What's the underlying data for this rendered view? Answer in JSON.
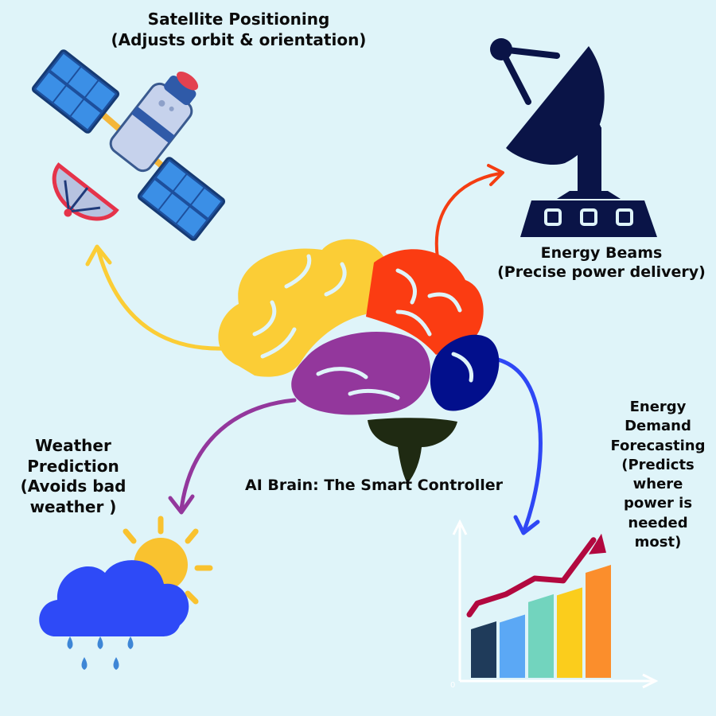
{
  "colors": {
    "background": "#dff4f9",
    "brain_frontal": "#fbcd36",
    "brain_parietal": "#fb3c12",
    "brain_temporal": "#93379c",
    "brain_occipital": "#020f8c",
    "brain_stem": "#1f2a12",
    "arrow_satellite": "#fbcd36",
    "arrow_beams": "#f43d12",
    "arrow_weather": "#93379c",
    "arrow_demand": "#2f47f5",
    "dish_navy": "#0a1447",
    "cloud_blue": "#2e4af7",
    "sun_yellow": "#f9c22f",
    "trend_line": "#b2083f"
  },
  "nodes": {
    "satellite": {
      "title": "Satellite Positioning",
      "subtitle": "(Adjusts orbit & orientation)",
      "icon": "satellite-icon"
    },
    "beams": {
      "title": "Energy Beams",
      "subtitle": "(Precise power delivery)",
      "icon": "satellite-dish-icon"
    },
    "weather": {
      "line1": "Weather",
      "line2": "Prediction",
      "line3": "(Avoids bad",
      "line4": "weather )",
      "icon": "rain-cloud-sun-icon"
    },
    "demand": {
      "line1": "Energy",
      "line2": "Demand",
      "line3": "Forecasting",
      "line4": "(Predicts",
      "line5": "where",
      "line6": "power is",
      "line7": "needed",
      "line8": "most)",
      "icon": "bar-chart-icon"
    },
    "brain": {
      "title": "AI Brain: The Smart Controller",
      "icon": "brain-icon"
    }
  },
  "chart": {
    "axis_origin_label": "0",
    "bars": [
      {
        "value": 0.5,
        "color": "#1f3b5a"
      },
      {
        "value": 0.56,
        "color": "#5ba8f5"
      },
      {
        "value": 0.74,
        "color": "#72d4be"
      },
      {
        "value": 0.8,
        "color": "#fbcd1c"
      },
      {
        "value": 1.0,
        "color": "#fb8e2c"
      }
    ],
    "trend": [
      0.66,
      0.74,
      0.88,
      0.86,
      1.22
    ]
  }
}
